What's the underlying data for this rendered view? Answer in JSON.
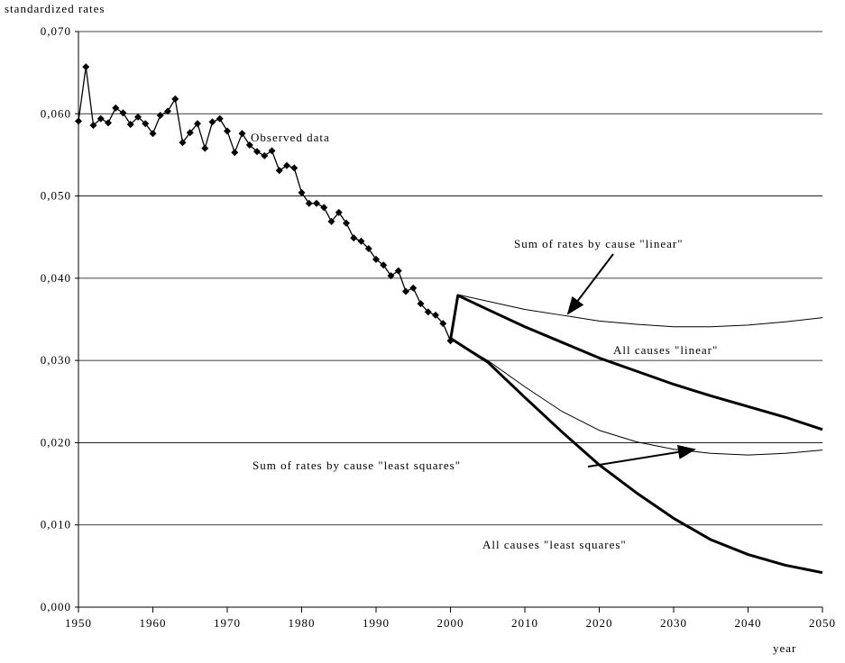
{
  "chart_data": {
    "type": "line",
    "y_label": "standardized rates",
    "x_label": "year",
    "xlim": [
      1950,
      2050
    ],
    "xticks": [
      1950,
      1960,
      1970,
      1980,
      1990,
      2000,
      2010,
      2020,
      2030,
      2040,
      2050
    ],
    "ylim": [
      0,
      0.07
    ],
    "yticks": [
      {
        "value": 0,
        "label": "0,000"
      },
      {
        "value": 0.01,
        "label": "0,010"
      },
      {
        "value": 0.02,
        "label": "0,020"
      },
      {
        "value": 0.03,
        "label": "0,030"
      },
      {
        "value": 0.04,
        "label": "0,040"
      },
      {
        "value": 0.05,
        "label": "0,050"
      },
      {
        "value": 0.06,
        "label": "0,060"
      },
      {
        "value": 0.07,
        "label": "0,070"
      }
    ],
    "grid": true,
    "series": [
      {
        "name": "Observed data",
        "color": "#000000",
        "line_width": 1.3,
        "marker": "diamond",
        "x": [
          1950,
          1951,
          1952,
          1953,
          1954,
          1955,
          1956,
          1957,
          1958,
          1959,
          1960,
          1961,
          1962,
          1963,
          1964,
          1965,
          1966,
          1967,
          1968,
          1969,
          1970,
          1971,
          1972,
          1973,
          1974,
          1975,
          1976,
          1977,
          1978,
          1979,
          1980,
          1981,
          1982,
          1983,
          1984,
          1985,
          1986,
          1987,
          1988,
          1989,
          1990,
          1991,
          1992,
          1993,
          1994,
          1995,
          1996,
          1997,
          1998,
          1999,
          2000
        ],
        "values": [
          0.0591,
          0.0657,
          0.0586,
          0.0594,
          0.0589,
          0.0607,
          0.0601,
          0.0587,
          0.0596,
          0.0588,
          0.0576,
          0.0598,
          0.0603,
          0.0618,
          0.0565,
          0.0577,
          0.0588,
          0.0558,
          0.059,
          0.0594,
          0.0579,
          0.0553,
          0.0576,
          0.0562,
          0.0554,
          0.0549,
          0.0555,
          0.0531,
          0.0537,
          0.0534,
          0.0504,
          0.0491,
          0.0491,
          0.0486,
          0.0469,
          0.048,
          0.0467,
          0.0449,
          0.0445,
          0.0436,
          0.0423,
          0.0416,
          0.0403,
          0.0409,
          0.0384,
          0.0388,
          0.0369,
          0.0359,
          0.0355,
          0.0345,
          0.0324
        ]
      },
      {
        "name": "Sum of rates by cause \"linear\"",
        "color": "#000000",
        "line_width": 1,
        "x": [
          2001,
          2010,
          2015,
          2020,
          2025,
          2030,
          2035,
          2040,
          2045,
          2050
        ],
        "values": [
          0.038,
          0.0362,
          0.0355,
          0.0348,
          0.0344,
          0.0341,
          0.0341,
          0.0343,
          0.0347,
          0.0352
        ]
      },
      {
        "name": "All causes \"linear\"",
        "color": "#000000",
        "line_width": 3,
        "x": [
          2000,
          2001,
          2005,
          2010,
          2015,
          2020,
          2025,
          2030,
          2035,
          2040,
          2045,
          2050
        ],
        "values": [
          0.0325,
          0.0379,
          0.0362,
          0.0341,
          0.0322,
          0.0303,
          0.0287,
          0.0271,
          0.0257,
          0.0244,
          0.0231,
          0.0216
        ]
      },
      {
        "name": "Sum of rates by cause \"least squares\"",
        "color": "#000000",
        "line_width": 1,
        "x": [
          2000,
          2005,
          2010,
          2015,
          2020,
          2025,
          2030,
          2035,
          2040,
          2045,
          2050
        ],
        "values": [
          0.0327,
          0.03,
          0.0268,
          0.0238,
          0.0215,
          0.0201,
          0.0192,
          0.0187,
          0.0185,
          0.0187,
          0.0191
        ]
      },
      {
        "name": "All causes \"least squares\"",
        "color": "#000000",
        "line_width": 3,
        "x": [
          2000,
          2005,
          2010,
          2015,
          2020,
          2025,
          2030,
          2035,
          2040,
          2045,
          2050
        ],
        "values": [
          0.0327,
          0.0298,
          0.0255,
          0.0213,
          0.0173,
          0.0139,
          0.0108,
          0.0082,
          0.0064,
          0.0051,
          0.0042
        ]
      }
    ]
  }
}
